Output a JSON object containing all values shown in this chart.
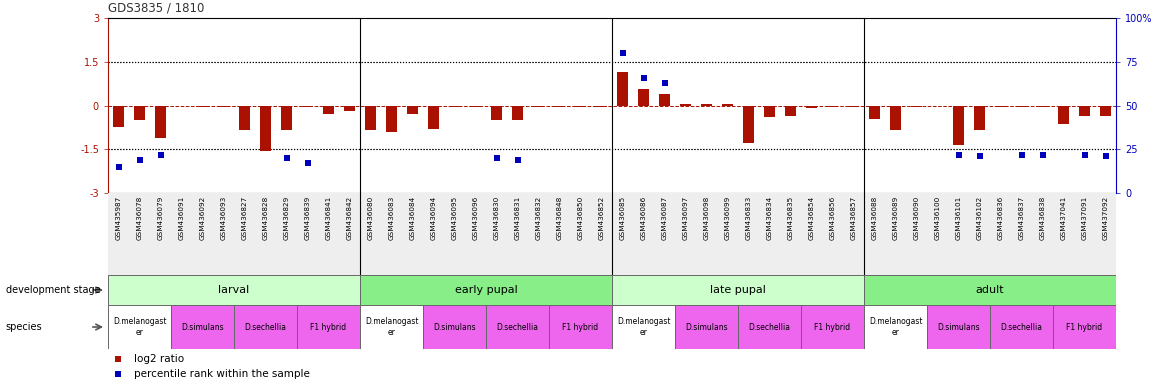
{
  "title": "GDS3835 / 1810",
  "samples": [
    "GSM435987",
    "GSM436078",
    "GSM436079",
    "GSM436091",
    "GSM436092",
    "GSM436093",
    "GSM436827",
    "GSM436828",
    "GSM436829",
    "GSM436839",
    "GSM436841",
    "GSM436842",
    "GSM436080",
    "GSM436083",
    "GSM436084",
    "GSM436094",
    "GSM436095",
    "GSM436096",
    "GSM436830",
    "GSM436831",
    "GSM436832",
    "GSM436848",
    "GSM436850",
    "GSM436852",
    "GSM436085",
    "GSM436086",
    "GSM436087",
    "GSM436097",
    "GSM436098",
    "GSM436099",
    "GSM436833",
    "GSM436834",
    "GSM436835",
    "GSM436854",
    "GSM436856",
    "GSM436857",
    "GSM436088",
    "GSM436089",
    "GSM436090",
    "GSM436100",
    "GSM436101",
    "GSM436102",
    "GSM436836",
    "GSM436837",
    "GSM436838",
    "GSM437041",
    "GSM437091",
    "GSM437092"
  ],
  "log2_ratio": [
    -0.75,
    -0.5,
    -1.1,
    0.0,
    -0.05,
    -0.05,
    -0.85,
    -1.55,
    -0.85,
    -0.05,
    -0.3,
    -0.2,
    -0.85,
    -0.9,
    -0.3,
    -0.8,
    -0.05,
    -0.05,
    -0.5,
    -0.5,
    -0.05,
    -0.05,
    -0.05,
    -0.05,
    1.15,
    0.55,
    0.4,
    0.05,
    0.05,
    0.05,
    -1.3,
    -0.4,
    -0.35,
    -0.1,
    -0.05,
    -0.05,
    -0.45,
    -0.85,
    -0.05,
    0.0,
    -1.35,
    -0.85,
    -0.05,
    -0.05,
    -0.05,
    -0.65,
    -0.35,
    -0.35
  ],
  "percentile": [
    15,
    19,
    22,
    null,
    null,
    null,
    null,
    null,
    20,
    17,
    null,
    null,
    null,
    null,
    null,
    null,
    null,
    null,
    20,
    19,
    null,
    null,
    null,
    null,
    80,
    66,
    63,
    null,
    null,
    null,
    null,
    null,
    null,
    null,
    null,
    null,
    null,
    null,
    null,
    null,
    22,
    21,
    null,
    22,
    22,
    null,
    22,
    21
  ],
  "dev_stages": [
    {
      "label": "larval",
      "start": 0,
      "end": 12,
      "color": "#ccffcc"
    },
    {
      "label": "early pupal",
      "start": 12,
      "end": 24,
      "color": "#88ee88"
    },
    {
      "label": "late pupal",
      "start": 24,
      "end": 36,
      "color": "#ccffcc"
    },
    {
      "label": "adult",
      "start": 36,
      "end": 48,
      "color": "#88ee88"
    }
  ],
  "species_groups": [
    {
      "label": "D.melanogast\ner",
      "start": 0,
      "end": 3,
      "color": "#ffffff"
    },
    {
      "label": "D.simulans",
      "start": 3,
      "end": 6,
      "color": "#ee66ee"
    },
    {
      "label": "D.sechellia",
      "start": 6,
      "end": 9,
      "color": "#ee66ee"
    },
    {
      "label": "F1 hybrid",
      "start": 9,
      "end": 12,
      "color": "#ee66ee"
    },
    {
      "label": "D.melanogast\ner",
      "start": 12,
      "end": 15,
      "color": "#ffffff"
    },
    {
      "label": "D.simulans",
      "start": 15,
      "end": 18,
      "color": "#ee66ee"
    },
    {
      "label": "D.sechellia",
      "start": 18,
      "end": 21,
      "color": "#ee66ee"
    },
    {
      "label": "F1 hybrid",
      "start": 21,
      "end": 24,
      "color": "#ee66ee"
    },
    {
      "label": "D.melanogast\ner",
      "start": 24,
      "end": 27,
      "color": "#ffffff"
    },
    {
      "label": "D.simulans",
      "start": 27,
      "end": 30,
      "color": "#ee66ee"
    },
    {
      "label": "D.sechellia",
      "start": 30,
      "end": 33,
      "color": "#ee66ee"
    },
    {
      "label": "F1 hybrid",
      "start": 33,
      "end": 36,
      "color": "#ee66ee"
    },
    {
      "label": "D.melanogast\ner",
      "start": 36,
      "end": 39,
      "color": "#ffffff"
    },
    {
      "label": "D.simulans",
      "start": 39,
      "end": 42,
      "color": "#ee66ee"
    },
    {
      "label": "D.sechellia",
      "start": 42,
      "end": 45,
      "color": "#ee66ee"
    },
    {
      "label": "F1 hybrid",
      "start": 45,
      "end": 48,
      "color": "#ee66ee"
    }
  ],
  "bar_color": "#aa1100",
  "dot_color": "#0000bb",
  "title_color": "#333333",
  "ylim_left": [
    -3.0,
    3.0
  ],
  "ylim_right": [
    0,
    100
  ],
  "legend_red": "log2 ratio",
  "legend_blue": "percentile rank within the sample",
  "dev_stage_label": "development stage",
  "species_label": "species",
  "chart_bg": "#ffffff",
  "tick_bg": "#dddddd"
}
